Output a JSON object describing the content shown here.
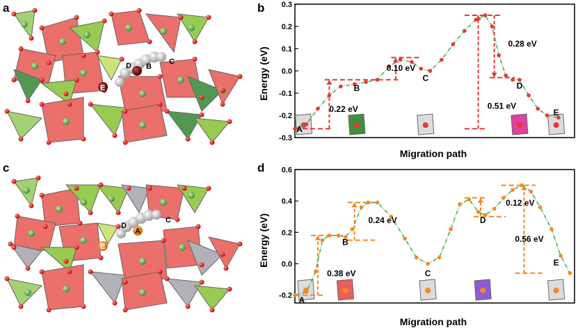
{
  "panels": {
    "a": {
      "letter": "a"
    },
    "b": {
      "letter": "b"
    },
    "c": {
      "letter": "c"
    },
    "d": {
      "letter": "d"
    }
  },
  "structure_a_labels": {
    "c": "C",
    "d": "D",
    "b": "B",
    "e": "E"
  },
  "structure_c_labels": {
    "c": "C",
    "d": "D",
    "a": "A",
    "e": "E"
  },
  "colors": {
    "red_octahedron": "#e9605a",
    "green_tetrahedron": "#8cc63f",
    "dark_green": "#3f8f3f",
    "grey_tetrahedron": "#a9a9b0",
    "oxygen": "#d40000",
    "curve": "#4caf50",
    "dash_b": "#e53935",
    "dash_d": "#f08a24",
    "point_b": "#e53935",
    "point_d": "#f08a24"
  },
  "chart_data": [
    {
      "panel": "b",
      "type": "line",
      "xlabel": "Migration path",
      "ylabel": "Energy (eV)",
      "ylim": [
        -0.3,
        0.3
      ],
      "yticks": [
        "0.3",
        "0.2",
        "0.1",
        "0.0",
        "-0.1",
        "-0.2",
        "-0.3"
      ],
      "series": [
        {
          "values": [
            [
              0.0,
              -0.26
            ],
            [
              0.05,
              -0.24
            ],
            [
              0.1,
              -0.17
            ],
            [
              0.15,
              -0.11
            ],
            [
              0.2,
              -0.07
            ],
            [
              0.26,
              -0.06
            ],
            [
              0.31,
              -0.05
            ],
            [
              0.36,
              -0.04
            ],
            [
              0.41,
              0.02
            ],
            [
              0.46,
              0.05
            ],
            [
              0.51,
              0.04
            ],
            [
              0.55,
              0.01
            ],
            [
              0.59,
              0.0
            ],
            [
              0.64,
              0.05
            ],
            [
              0.69,
              0.12
            ],
            [
              0.74,
              0.18
            ],
            [
              0.79,
              0.23
            ],
            [
              0.83,
              0.25
            ],
            [
              0.86,
              0.2
            ],
            [
              0.89,
              0.07
            ],
            [
              0.92,
              -0.02
            ],
            [
              0.95,
              -0.04
            ],
            [
              0.98,
              -0.04
            ],
            [
              1.02,
              -0.11
            ],
            [
              1.06,
              -0.17
            ],
            [
              1.1,
              -0.2
            ],
            [
              1.15,
              -0.21
            ]
          ]
        }
      ],
      "site_labels": [
        {
          "text": "A",
          "x": 0.02,
          "y": -0.275
        },
        {
          "text": "B",
          "x": 0.27,
          "y": -0.09
        },
        {
          "text": "C",
          "x": 0.57,
          "y": -0.045
        },
        {
          "text": "D",
          "x": 0.98,
          "y": -0.08
        },
        {
          "text": "E",
          "x": 1.14,
          "y": -0.2
        }
      ],
      "annotations": [
        {
          "text": "0.22 eV",
          "x": 0.15,
          "y": -0.185
        },
        {
          "text": "0.10 eV",
          "x": 0.4,
          "y": 0.0
        },
        {
          "text": "0.51 eV",
          "x": 0.84,
          "y": -0.17
        },
        {
          "text": "0.28 eV",
          "x": 0.93,
          "y": 0.11
        }
      ],
      "barriers": [
        {
          "x": 0.15,
          "from": -0.26,
          "to": -0.04
        },
        {
          "x": 0.44,
          "from": -0.04,
          "to": 0.06
        },
        {
          "x": 0.8,
          "from": -0.26,
          "to": 0.25
        },
        {
          "x": 0.87,
          "from": 0.25,
          "to": -0.03
        }
      ],
      "levels": [
        {
          "y": -0.26,
          "x0": 0.0,
          "x1": 0.16
        },
        {
          "y": -0.04,
          "x0": 0.13,
          "x1": 0.45
        },
        {
          "y": 0.06,
          "x0": 0.42,
          "x1": 0.55
        },
        {
          "y": 0.25,
          "x0": 0.74,
          "x1": 0.9
        },
        {
          "y": -0.26,
          "x0": 0.74,
          "x1": 0.84
        },
        {
          "y": -0.03,
          "x0": 0.85,
          "x1": 0.96
        }
      ]
    },
    {
      "panel": "d",
      "type": "line",
      "xlabel": "Migration path",
      "ylabel": "Energy (eV)",
      "ylim": [
        -0.25,
        0.6
      ],
      "yticks": [
        "0.6",
        "0.4",
        "0.2",
        "0.0",
        "-0.2"
      ],
      "series": [
        {
          "values": [
            [
              0.0,
              -0.2
            ],
            [
              0.05,
              -0.18
            ],
            [
              0.09,
              -0.05
            ],
            [
              0.12,
              0.15
            ],
            [
              0.15,
              0.18
            ],
            [
              0.19,
              0.18
            ],
            [
              0.22,
              0.17
            ],
            [
              0.25,
              0.22
            ],
            [
              0.29,
              0.36
            ],
            [
              0.32,
              0.39
            ],
            [
              0.36,
              0.39
            ],
            [
              0.42,
              0.3
            ],
            [
              0.48,
              0.16
            ],
            [
              0.53,
              0.04
            ],
            [
              0.58,
              0.0
            ],
            [
              0.63,
              0.04
            ],
            [
              0.68,
              0.22
            ],
            [
              0.72,
              0.38
            ],
            [
              0.76,
              0.41
            ],
            [
              0.8,
              0.33
            ],
            [
              0.83,
              0.31
            ],
            [
              0.87,
              0.35
            ],
            [
              0.91,
              0.42
            ],
            [
              0.95,
              0.47
            ],
            [
              0.99,
              0.5
            ],
            [
              1.03,
              0.46
            ],
            [
              1.07,
              0.36
            ],
            [
              1.12,
              0.22
            ],
            [
              1.16,
              0.05
            ],
            [
              1.2,
              -0.06
            ]
          ]
        }
      ],
      "site_labels": [
        {
          "text": "A",
          "x": 0.03,
          "y": -0.25
        },
        {
          "text": "B",
          "x": 0.22,
          "y": 0.12
        },
        {
          "text": "C",
          "x": 0.58,
          "y": -0.08
        },
        {
          "text": "D",
          "x": 0.82,
          "y": 0.26
        },
        {
          "text": "E",
          "x": 1.14,
          "y": -0.01
        }
      ],
      "annotations": [
        {
          "text": "0.38 eV",
          "x": 0.14,
          "y": -0.08
        },
        {
          "text": "0.24 eV",
          "x": 0.32,
          "y": 0.26
        },
        {
          "text": "0.12 eV",
          "x": 0.92,
          "y": 0.37
        },
        {
          "text": "0.56 eV",
          "x": 0.96,
          "y": 0.14
        }
      ],
      "barriers": [
        {
          "x": 0.1,
          "from": -0.2,
          "to": 0.18
        },
        {
          "x": 0.26,
          "from": 0.15,
          "to": 0.39
        },
        {
          "x": 0.81,
          "from": 0.3,
          "to": 0.42
        },
        {
          "x": 1.0,
          "from": -0.06,
          "to": 0.5
        }
      ],
      "levels": [
        {
          "y": -0.2,
          "x0": 0.0,
          "x1": 0.13
        },
        {
          "y": 0.18,
          "x0": 0.07,
          "x1": 0.21
        },
        {
          "y": 0.15,
          "x0": 0.23,
          "x1": 0.35
        },
        {
          "y": 0.39,
          "x0": 0.23,
          "x1": 0.35
        },
        {
          "y": 0.42,
          "x0": 0.74,
          "x1": 0.83
        },
        {
          "y": 0.3,
          "x0": 0.78,
          "x1": 0.92
        },
        {
          "y": 0.5,
          "x0": 0.9,
          "x1": 1.05
        },
        {
          "y": -0.06,
          "x0": 0.96,
          "x1": 1.08
        }
      ]
    }
  ]
}
